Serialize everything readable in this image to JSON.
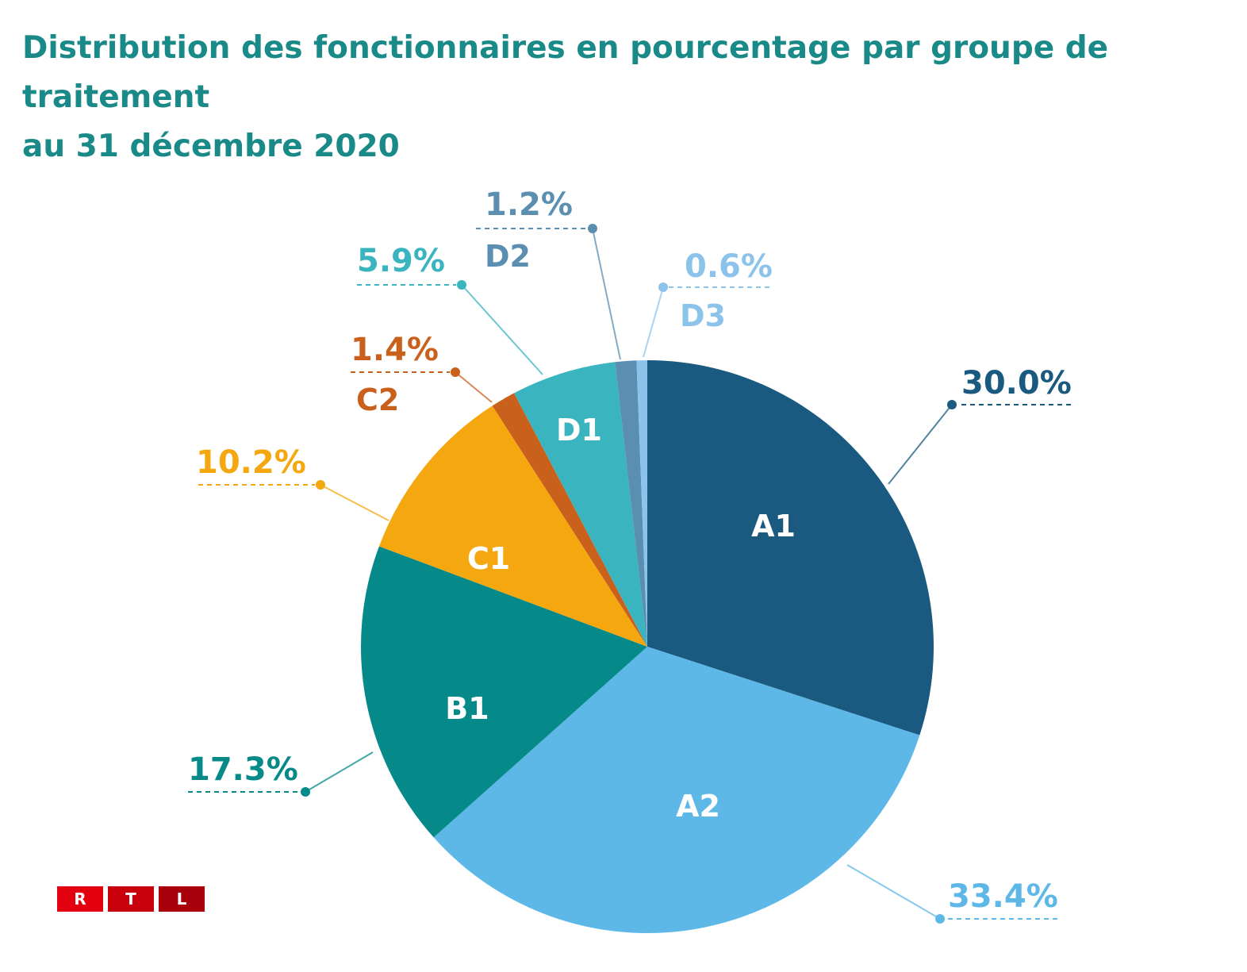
{
  "title_lines": [
    "Distribution des fonctionnaires en pourcentage par groupe de traitement",
    "au 31 décembre 2020"
  ],
  "chart_data": {
    "type": "pie",
    "title": "Distribution des fonctionnaires en pourcentage par groupe de traitement au 31 décembre 2020",
    "start": "12 o'clock, clockwise",
    "slices": [
      {
        "name": "A1",
        "value": 30.0,
        "label": "30.0%",
        "color": "#1b5a80",
        "name_color": "#ffffff"
      },
      {
        "name": "A2",
        "value": 33.4,
        "label": "33.4%",
        "color": "#5db8e8",
        "name_color": "#ffffff"
      },
      {
        "name": "B1",
        "value": 17.3,
        "label": "17.3%",
        "color": "#058a89",
        "name_color": "#ffffff"
      },
      {
        "name": "C1",
        "value": 10.2,
        "label": "10.2%",
        "color": "#f4a70e",
        "name_color": "#ffffff"
      },
      {
        "name": "C2",
        "value": 1.4,
        "label": "1.4%",
        "color": "#c9601c",
        "name_color": "#c9601c"
      },
      {
        "name": "D1",
        "value": 5.9,
        "label": "5.9%",
        "color": "#3ab4bf",
        "name_color": "#ffffff"
      },
      {
        "name": "D2",
        "value": 1.2,
        "label": "1.2%",
        "color": "#5b8fb2",
        "name_color": "#5b8fb2"
      },
      {
        "name": "D3",
        "value": 0.6,
        "label": "0.6%",
        "color": "#8cc3ea",
        "name_color": "#8cc3ea"
      }
    ]
  },
  "logo": {
    "letters": [
      "R",
      "T",
      "L"
    ],
    "colors": [
      "#e3000f",
      "#c8000c",
      "#a8000a"
    ]
  }
}
